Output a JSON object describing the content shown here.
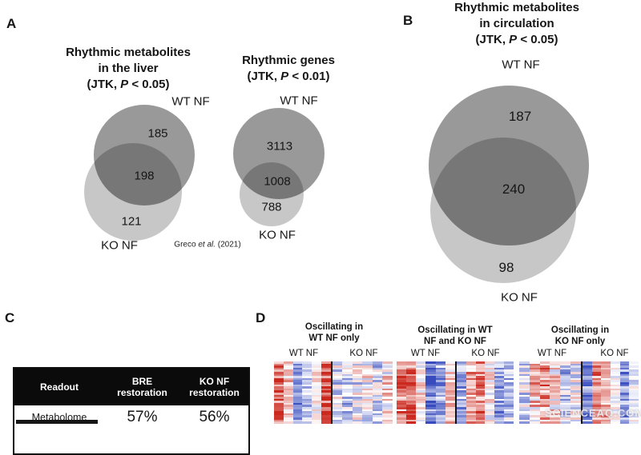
{
  "figure": {
    "watermark": "SCIENCEAQ.COM"
  },
  "panels": {
    "a": {
      "label": "A",
      "venn_liver": {
        "title1": "Rhythmic metabolites",
        "title2": "in the liver",
        "stat_prefix": "(JTK, ",
        "stat_p": "P",
        "stat_suffix": " < 0.05)",
        "wt_label": "WT NF",
        "ko_label": "KO NF",
        "wt_only": "185",
        "shared": "198",
        "ko_only": "121"
      },
      "venn_genes": {
        "title1": "Rhythmic genes",
        "stat_prefix": "(JTK, ",
        "stat_p": "P",
        "stat_suffix": " < 0.01)",
        "wt_label": "WT NF",
        "ko_label": "KO NF",
        "wt_only": "3113",
        "shared": "1008",
        "ko_only": "788"
      },
      "citation": {
        "pre": "Greco ",
        "italic": "et al.",
        "post": " (2021)"
      }
    },
    "b": {
      "label": "B",
      "venn": {
        "title1": "Rhythmic metabolites",
        "title2": "in circulation",
        "stat_prefix": "(JTK, ",
        "stat_p": "P",
        "stat_suffix": " < 0.05)",
        "wt_label": "WT NF",
        "ko_label": "KO NF",
        "wt_only": "187",
        "shared": "240",
        "ko_only": "98"
      }
    },
    "c": {
      "label": "C",
      "table": {
        "header_readout": "Readout",
        "header_bre": [
          "BRE",
          "restoration"
        ],
        "header_ko": [
          "KO NF",
          "restoration"
        ],
        "row_label": "Metabolome",
        "row_bre": "57%",
        "row_ko": "56%"
      }
    },
    "d": {
      "label": "D",
      "heatmaps": [
        {
          "title": [
            "Oscillating in",
            "WT NF only"
          ],
          "left_label": "WT NF",
          "right_label": "KO NF",
          "rows": 30,
          "seed": 7,
          "left_profile": [
            0.85,
            0.3,
            -0.7,
            -0.35,
            0.05,
            0.9
          ],
          "left_noise": 0.3,
          "right_profile": [
            -0.2,
            -0.3,
            -0.15,
            -0.05,
            -0.25,
            0.1
          ],
          "right_noise": 0.5
        },
        {
          "title": [
            "Oscillating in WT",
            "NF and KO NF"
          ],
          "left_label": "WT NF",
          "right_label": "KO NF",
          "rows": 30,
          "seed": 13,
          "left_profile": [
            0.6,
            0.85,
            0.1,
            -0.8,
            -0.55,
            0.25
          ],
          "left_noise": 0.35,
          "right_profile": [
            -0.5,
            0.4,
            0.6,
            0.1,
            -0.5,
            -0.3
          ],
          "right_noise": 0.4
        },
        {
          "title": [
            "Oscillating in",
            "KO NF only"
          ],
          "left_label": "WT NF",
          "right_label": "KO NF",
          "rows": 30,
          "seed": 21,
          "left_profile": [
            -0.25,
            0.3,
            0.5,
            0.2,
            -0.3,
            -0.05
          ],
          "left_noise": 0.5,
          "right_profile": [
            -0.75,
            0.65,
            0.45,
            0.05,
            -0.65,
            -0.15
          ],
          "right_noise": 0.3
        }
      ]
    }
  },
  "chart_data": [
    {
      "type": "venn",
      "panel": "A",
      "title": "Rhythmic metabolites in the liver (JTK, P < 0.05)",
      "sets": [
        "WT NF",
        "KO NF"
      ],
      "wt_nf_only": 185,
      "shared": 198,
      "ko_nf_only": 121
    },
    {
      "type": "venn",
      "panel": "A",
      "title": "Rhythmic genes (JTK, P < 0.01)",
      "source": "Greco et al. (2021)",
      "sets": [
        "WT NF",
        "KO NF"
      ],
      "wt_nf_only": 3113,
      "shared": 1008,
      "ko_nf_only": 788
    },
    {
      "type": "venn",
      "panel": "B",
      "title": "Rhythmic metabolites in circulation (JTK, P < 0.05)",
      "sets": [
        "WT NF",
        "KO NF"
      ],
      "wt_nf_only": 187,
      "shared": 240,
      "ko_nf_only": 98
    },
    {
      "type": "table",
      "panel": "C",
      "columns": [
        "Readout",
        "BRE restoration",
        "KO NF restoration"
      ],
      "rows": [
        [
          "Metabolome",
          "57%",
          "56%"
        ]
      ]
    },
    {
      "type": "heatmap",
      "panel": "D",
      "colorscale": "blue-white-red",
      "subpanels": [
        {
          "title": "Oscillating in WT NF only",
          "columns": [
            "WT NF",
            "KO NF"
          ]
        },
        {
          "title": "Oscillating in WT NF and KO NF",
          "columns": [
            "WT NF",
            "KO NF"
          ]
        },
        {
          "title": "Oscillating in KO NF only",
          "columns": [
            "WT NF",
            "KO NF"
          ]
        }
      ]
    }
  ]
}
